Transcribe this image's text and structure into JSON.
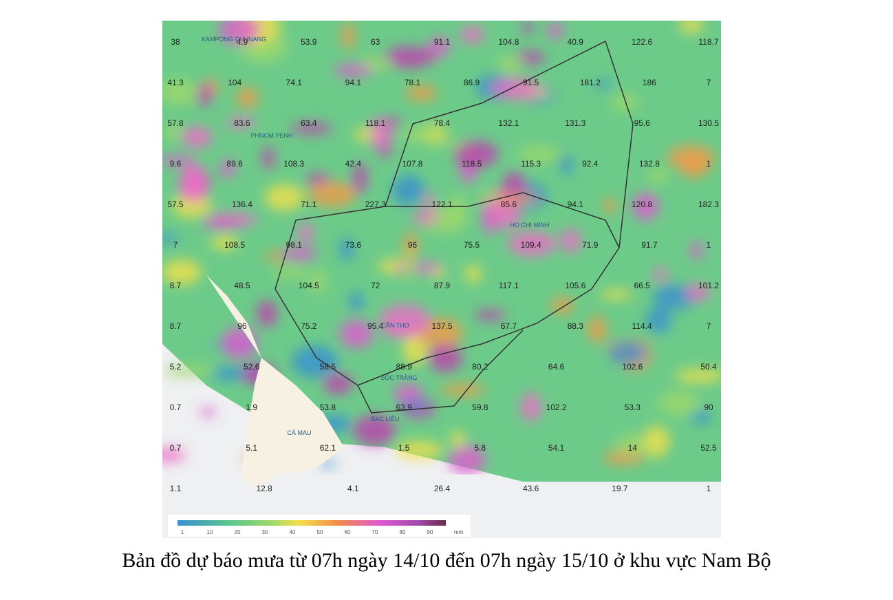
{
  "map": {
    "rows": [
      [
        "38",
        "4.9",
        "53.9",
        "63",
        "91.1",
        "104.8",
        "40.9",
        "122.6",
        "118.7"
      ],
      [
        "41.3",
        "104",
        "74.1",
        "94.1",
        "78.1",
        "86.9",
        "91.5",
        "181.2",
        "186",
        "7"
      ],
      [
        "57.8",
        "83.6",
        "63.4",
        "118.1",
        "78.4",
        "132.1",
        "131.3",
        "95.6",
        "130.5"
      ],
      [
        "9.6",
        "89.6",
        "108.3",
        "42.4",
        "107.8",
        "118.5",
        "115.3",
        "92.4",
        "132.8",
        "1"
      ],
      [
        "57.5",
        "136.4",
        "71.1",
        "227.3",
        "122.1",
        "85.6",
        "94.1",
        "120.8",
        "182.3"
      ],
      [
        "7",
        "108.5",
        "98.1",
        "73.6",
        "96",
        "75.5",
        "109.4",
        "71.9",
        "91.7",
        "1"
      ],
      [
        "8.7",
        "48.5",
        "104.5",
        "72",
        "87.9",
        "117.1",
        "105.6",
        "66.5",
        "101.2"
      ],
      [
        "8.7",
        "96",
        "75.2",
        "95.4",
        "137.5",
        "67.7",
        "88.3",
        "114.4",
        "7"
      ],
      [
        "5.2",
        "52.6",
        "58.5",
        "88.9",
        "80.2",
        "64.6",
        "102.6",
        "50.4"
      ],
      [
        "0.7",
        "1.9",
        "53.8",
        "63.9",
        "59.8",
        "102.2",
        "53.3",
        "90"
      ],
      [
        "0.7",
        "5.1",
        "62.1",
        "1.5",
        "5.8",
        "54.1",
        "14",
        "52.5"
      ],
      [
        "1.1",
        "12.8",
        "4.1",
        "26.4",
        "43.6",
        "19.7",
        "1"
      ]
    ],
    "places": [
      "KAMPONG CHHNANG",
      "PHNOM PENH",
      "HO CHI MINH",
      "CẦN THƠ",
      "SÓC TRĂNG",
      "BẠC LIÊU",
      "CÀ MAU"
    ],
    "legend": {
      "ticks": [
        "1",
        "10",
        "20",
        "30",
        "40",
        "50",
        "60",
        "70",
        "80",
        "90"
      ],
      "unit": "mm"
    }
  },
  "caption": "Bản đồ dự báo mưa từ 07h ngày 14/10 đến 07h ngày 15/10 ở khu vực Nam Bộ"
}
